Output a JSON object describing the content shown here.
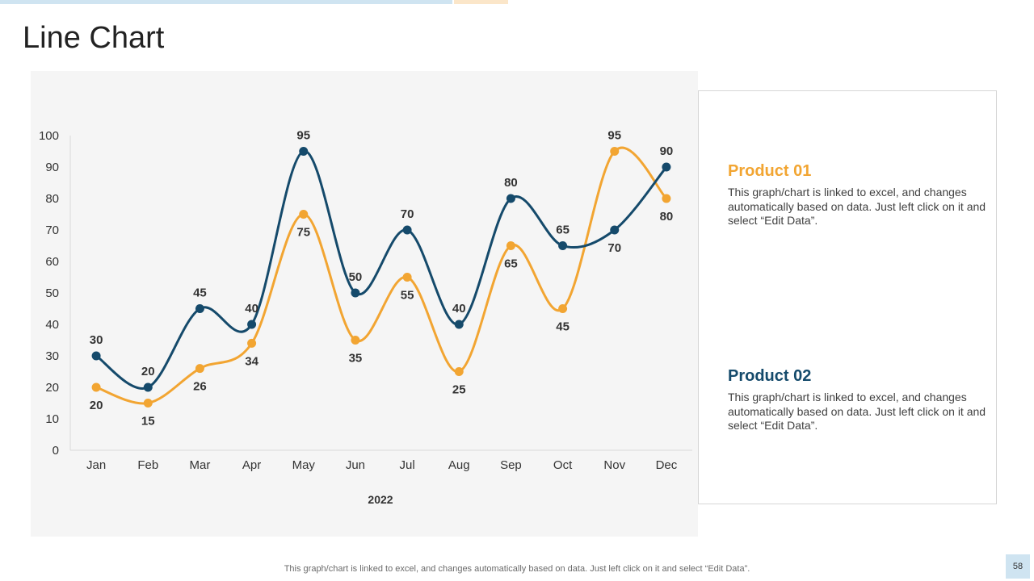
{
  "slide": {
    "title": "Line Chart",
    "footer_note": "This graph/chart is linked to excel, and changes automatically based on data. Just left click on it and select “Edit Data”.",
    "page_number": "58"
  },
  "colors": {
    "product_01": "#F2A532",
    "product_02": "#154A6B"
  },
  "legend": {
    "product_01": {
      "title": "Product 01",
      "description": "This graph/chart is linked to excel, and changes automatically based on data. Just left click on it and select “Edit Data”."
    },
    "product_02": {
      "title": "Product 02",
      "description": "This graph/chart is linked to excel, and changes automatically based on data. Just left click on it and select “Edit Data”."
    }
  },
  "chart_data": {
    "type": "line",
    "categories": [
      "Jan",
      "Feb",
      "Mar",
      "Apr",
      "May",
      "Jun",
      "Jul",
      "Aug",
      "Sep",
      "Oct",
      "Nov",
      "Dec"
    ],
    "series": [
      {
        "name": "Product 01",
        "values": [
          20,
          15,
          26,
          34,
          75,
          35,
          55,
          25,
          65,
          45,
          95,
          80
        ]
      },
      {
        "name": "Product 02",
        "values": [
          30,
          20,
          45,
          40,
          95,
          50,
          70,
          40,
          80,
          65,
          70,
          90
        ]
      }
    ],
    "title": "",
    "xlabel": "2022",
    "ylabel": "",
    "ylim": [
      0,
      100
    ],
    "yticks": [
      0,
      10,
      20,
      30,
      40,
      50,
      60,
      70,
      80,
      90,
      100
    ],
    "smooth": true,
    "data_labels": true
  }
}
